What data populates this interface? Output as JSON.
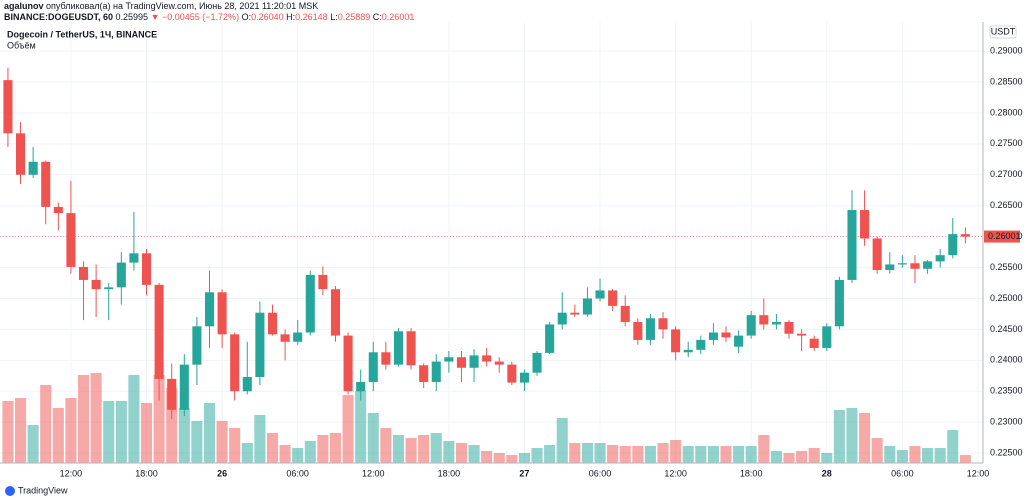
{
  "header": {
    "author": "agalunov",
    "published": "опубликовал(а) на TradingView.com, Июнь 28, 2021 11:20:01 MSK",
    "symbol": "BINANCE:DOGEUSDT, 60",
    "last": "0.25995",
    "change": "▼ −0.00455 (−1.72%)",
    "ohlc": [
      {
        "label": "O:",
        "value": "0.26040"
      },
      {
        "label": "H:",
        "value": "0.26148"
      },
      {
        "label": "L:",
        "value": "0.25889"
      },
      {
        "label": "C:",
        "value": "0.26001"
      }
    ]
  },
  "chart_data": {
    "type": "candlestick",
    "title": "Dogecoin / TetherUS, 1Ч, BINANCE",
    "volume_label": "Объём",
    "y_axis_label": "USDT",
    "up_color": "#26a69a",
    "down_color": "#ef5350",
    "grid": true,
    "x": [
      0,
      1,
      2,
      3,
      4,
      5,
      6,
      7,
      8,
      9,
      10,
      11,
      12,
      13,
      14,
      15,
      16,
      17,
      18,
      19,
      20,
      21,
      22,
      23,
      24,
      25,
      26,
      27,
      28,
      29,
      30,
      31,
      32,
      33,
      34,
      35,
      36,
      37,
      38,
      39,
      40,
      41,
      42,
      43,
      44,
      45,
      46,
      47,
      48,
      49,
      50,
      51,
      52,
      53,
      54,
      55,
      56,
      57,
      58,
      59,
      60,
      61,
      62,
      63,
      64,
      65,
      66,
      67,
      68,
      69,
      70,
      71,
      72,
      73,
      74,
      75,
      76
    ],
    "xlim": [
      -0.63,
      77.4
    ],
    "xticks": [
      {
        "value": 5,
        "label": "12:00"
      },
      {
        "value": 11,
        "label": "18:00"
      },
      {
        "value": 17,
        "label": "26"
      },
      {
        "value": 23,
        "label": "06:00"
      },
      {
        "value": 29,
        "label": "12:00"
      },
      {
        "value": 35,
        "label": "18:00"
      },
      {
        "value": 41,
        "label": "27"
      },
      {
        "value": 47,
        "label": "06:00"
      },
      {
        "value": 53,
        "label": "12:00"
      },
      {
        "value": 59,
        "label": "18:00"
      },
      {
        "value": 65,
        "label": "28"
      },
      {
        "value": 71,
        "label": "06:00"
      },
      {
        "value": 77,
        "label": "12:00"
      }
    ],
    "ylim": [
      0.2234,
      0.2947
    ],
    "yticks": [
      {
        "value": 0.29,
        "label": "0.29000"
      },
      {
        "value": 0.285,
        "label": "0.28500"
      },
      {
        "value": 0.28,
        "label": "0.28000"
      },
      {
        "value": 0.275,
        "label": "0.27500"
      },
      {
        "value": 0.27,
        "label": "0.27000"
      },
      {
        "value": 0.265,
        "label": "0.26500"
      },
      {
        "value": 0.26,
        "label": "0.26000"
      },
      {
        "value": 0.255,
        "label": "0.25500"
      },
      {
        "value": 0.25,
        "label": "0.25000"
      },
      {
        "value": 0.245,
        "label": "0.24500"
      },
      {
        "value": 0.24,
        "label": "0.24000"
      },
      {
        "value": 0.235,
        "label": "0.23500"
      },
      {
        "value": 0.23,
        "label": "0.23000"
      },
      {
        "value": 0.225,
        "label": "0.22500"
      }
    ],
    "open": [
      0.2853,
      0.2767,
      0.27,
      0.2721,
      0.2648,
      0.2638,
      0.2551,
      0.253,
      0.2515,
      0.2518,
      0.2558,
      0.2573,
      0.2522,
      0.237,
      0.232,
      0.2393,
      0.2455,
      0.251,
      0.2442,
      0.235,
      0.2373,
      0.2477,
      0.2442,
      0.243,
      0.2445,
      0.2538,
      0.2515,
      0.244,
      0.235,
      0.2365,
      0.2413,
      0.2393,
      0.2447,
      0.2392,
      0.2365,
      0.2398,
      0.2405,
      0.2388,
      0.2408,
      0.2398,
      0.2393,
      0.2364,
      0.238,
      0.2412,
      0.2458,
      0.2477,
      0.2474,
      0.25,
      0.2513,
      0.2488,
      0.2462,
      0.2433,
      0.2468,
      0.245,
      0.2413,
      0.2417,
      0.2433,
      0.2445,
      0.2422,
      0.244,
      0.2473,
      0.2458,
      0.2462,
      0.2443,
      0.2435,
      0.242,
      0.2455,
      0.253,
      0.2643,
      0.2597,
      0.2546,
      0.2555,
      0.2557,
      0.2548,
      0.256,
      0.257,
      0.2604
    ],
    "high": [
      0.2873,
      0.2785,
      0.2745,
      0.2723,
      0.2655,
      0.269,
      0.256,
      0.2555,
      0.2525,
      0.2575,
      0.264,
      0.258,
      0.2525,
      0.2395,
      0.241,
      0.247,
      0.2545,
      0.2515,
      0.2445,
      0.243,
      0.2495,
      0.249,
      0.245,
      0.2465,
      0.2545,
      0.2552,
      0.252,
      0.2445,
      0.2385,
      0.243,
      0.243,
      0.2452,
      0.2452,
      0.2395,
      0.241,
      0.2415,
      0.2415,
      0.2418,
      0.242,
      0.2405,
      0.2398,
      0.2385,
      0.2415,
      0.2462,
      0.251,
      0.249,
      0.2518,
      0.2532,
      0.2515,
      0.2505,
      0.2468,
      0.2475,
      0.2478,
      0.2455,
      0.243,
      0.244,
      0.246,
      0.2455,
      0.2448,
      0.248,
      0.25,
      0.2475,
      0.2465,
      0.245,
      0.244,
      0.246,
      0.2535,
      0.2675,
      0.2675,
      0.26,
      0.2575,
      0.257,
      0.257,
      0.2562,
      0.258,
      0.263,
      0.26148
    ],
    "low": [
      0.2745,
      0.2685,
      0.2695,
      0.262,
      0.261,
      0.254,
      0.2465,
      0.247,
      0.2465,
      0.249,
      0.2545,
      0.2505,
      0.2335,
      0.2305,
      0.231,
      0.236,
      0.242,
      0.242,
      0.2335,
      0.2345,
      0.236,
      0.244,
      0.24,
      0.2425,
      0.244,
      0.2505,
      0.243,
      0.2345,
      0.2335,
      0.235,
      0.2385,
      0.239,
      0.2385,
      0.2355,
      0.235,
      0.238,
      0.2365,
      0.2365,
      0.239,
      0.238,
      0.236,
      0.235,
      0.2375,
      0.241,
      0.245,
      0.247,
      0.247,
      0.2495,
      0.248,
      0.2455,
      0.2425,
      0.2425,
      0.2435,
      0.24,
      0.2405,
      0.241,
      0.2425,
      0.243,
      0.2412,
      0.2435,
      0.245,
      0.245,
      0.2435,
      0.2415,
      0.2415,
      0.2415,
      0.245,
      0.2525,
      0.2585,
      0.254,
      0.254,
      0.255,
      0.2525,
      0.254,
      0.255,
      0.2565,
      0.25889
    ],
    "close": [
      0.2767,
      0.27,
      0.2721,
      0.2648,
      0.2638,
      0.2551,
      0.253,
      0.2515,
      0.2518,
      0.2558,
      0.2573,
      0.2522,
      0.237,
      0.232,
      0.2393,
      0.2455,
      0.251,
      0.2442,
      0.235,
      0.2373,
      0.2477,
      0.2442,
      0.243,
      0.2445,
      0.2538,
      0.2515,
      0.244,
      0.235,
      0.2365,
      0.2413,
      0.2393,
      0.2447,
      0.2392,
      0.2365,
      0.2398,
      0.2405,
      0.2388,
      0.2408,
      0.2398,
      0.2393,
      0.2364,
      0.238,
      0.2412,
      0.2458,
      0.2477,
      0.2474,
      0.25,
      0.2513,
      0.2488,
      0.2462,
      0.2433,
      0.2468,
      0.245,
      0.2413,
      0.2417,
      0.2433,
      0.2445,
      0.2437,
      0.244,
      0.2473,
      0.2458,
      0.2462,
      0.2443,
      0.244,
      0.242,
      0.2455,
      0.253,
      0.2643,
      0.2597,
      0.2546,
      0.2555,
      0.2557,
      0.2548,
      0.256,
      0.257,
      0.2604,
      0.26001
    ],
    "volume": [
      62,
      65,
      38,
      78,
      55,
      65,
      88,
      90,
      62,
      62,
      88,
      60,
      88,
      75,
      55,
      42,
      60,
      42,
      35,
      20,
      48,
      30,
      18,
      15,
      22,
      28,
      30,
      68,
      72,
      50,
      35,
      28,
      25,
      28,
      30,
      22,
      20,
      18,
      12,
      10,
      8,
      10,
      15,
      18,
      45,
      20,
      20,
      20,
      18,
      17,
      17,
      17,
      20,
      23,
      17,
      17,
      17,
      17,
      17,
      17,
      28,
      12,
      10,
      12,
      15,
      10,
      53,
      55,
      50,
      25,
      17,
      13,
      17,
      15,
      15,
      33,
      8
    ]
  }
}
